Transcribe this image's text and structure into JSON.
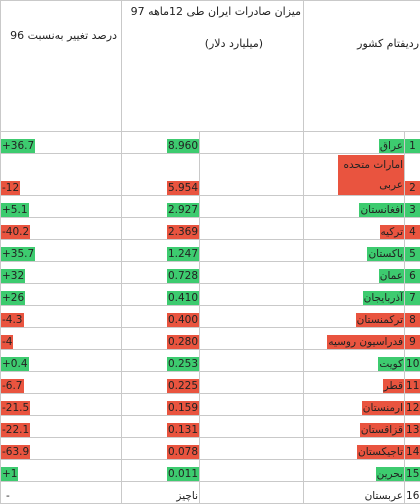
{
  "headers": {
    "pct": "درصد تغییر به‌نسبت 96",
    "value_title": "میزان صادرات ایران طی 12ماهه 97",
    "value_unit": "(میلیارد دلار)",
    "name": "تام کشور",
    "rank": "ردیف"
  },
  "colors": {
    "green": "#3dcb6f",
    "red": "#e9543f",
    "grid": "#c9c9c9"
  },
  "rows": [
    {
      "rank": "1",
      "name": "عراق",
      "value": "8.960",
      "pct": "+36.7",
      "name_color": "green",
      "value_color": "green",
      "pct_color": "green"
    },
    {
      "rank": "2",
      "name": "امارات متحده عربی",
      "value": "5.954",
      "pct": "-12",
      "name_color": "red",
      "value_color": "red",
      "pct_color": "red"
    },
    {
      "rank": "3",
      "name": "افغانستان",
      "value": "2.927",
      "pct": "+5.1",
      "name_color": "green",
      "value_color": "green",
      "pct_color": "green"
    },
    {
      "rank": "4",
      "name": "ترکیه",
      "value": "2.369",
      "pct": "-40.2",
      "name_color": "red",
      "value_color": "red",
      "pct_color": "red"
    },
    {
      "rank": "5",
      "name": "پاکستان",
      "value": "1.247",
      "pct": "+35.7",
      "name_color": "green",
      "value_color": "green",
      "pct_color": "green"
    },
    {
      "rank": "6",
      "name": "عمان",
      "value": "0.728",
      "pct": "+32",
      "name_color": "green",
      "value_color": "green",
      "pct_color": "green"
    },
    {
      "rank": "7",
      "name": "آذربایجان",
      "value": "0.410",
      "pct": "+26",
      "name_color": "green",
      "value_color": "green",
      "pct_color": "green"
    },
    {
      "rank": "8",
      "name": "ترکمنستان",
      "value": "0.400",
      "pct": "-4.3",
      "name_color": "red",
      "value_color": "red",
      "pct_color": "red"
    },
    {
      "rank": "9",
      "name": "فدراسیون روسیه",
      "value": "0.280",
      "pct": "-4",
      "name_color": "red",
      "value_color": "red",
      "pct_color": "red"
    },
    {
      "rank": "10",
      "name": "کویت",
      "value": "0.253",
      "pct": "+0.4",
      "name_color": "green",
      "value_color": "green",
      "pct_color": "green"
    },
    {
      "rank": "11",
      "name": "قطر",
      "value": "0.225",
      "pct": "-6.7",
      "name_color": "red",
      "value_color": "red",
      "pct_color": "red"
    },
    {
      "rank": "12",
      "name": "ارمنستان",
      "value": "0.159",
      "pct": "-21.5",
      "name_color": "red",
      "value_color": "red",
      "pct_color": "red"
    },
    {
      "rank": "13",
      "name": "قزاقستان",
      "value": "0.131",
      "pct": "-22.1",
      "name_color": "red",
      "value_color": "red",
      "pct_color": "red"
    },
    {
      "rank": "14",
      "name": "تاجیکستان",
      "value": "0.078",
      "pct": "-63.9",
      "name_color": "red",
      "value_color": "red",
      "pct_color": "red"
    },
    {
      "rank": "15",
      "name": "بحرین",
      "value": "0.011",
      "pct": "+1",
      "name_color": "green",
      "value_color": "green",
      "pct_color": "green"
    },
    {
      "rank": "16",
      "name": "عربستان",
      "value": "ناچیز",
      "pct": "-",
      "name_color": "none",
      "value_color": "none",
      "pct_color": "none"
    }
  ]
}
